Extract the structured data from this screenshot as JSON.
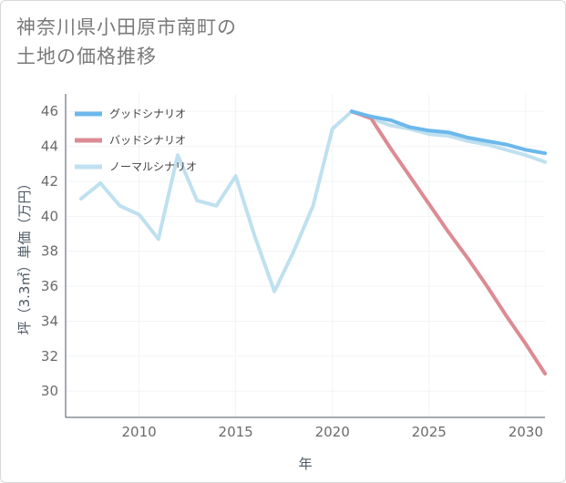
{
  "title": {
    "line1": "神奈川県小田原市南町の",
    "line2": "土地の価格推移"
  },
  "colors": {
    "good": "#6cb8ec",
    "bad": "#dc8b93",
    "normal": "#bfe0ef",
    "grid": "#ffffff",
    "plot_bg": "#ffffff"
  },
  "chart_data": {
    "type": "line",
    "title": "神奈川県小田原市南町の土地の価格推移",
    "xlabel": "年",
    "ylabel": "坪（3.3㎡）単価（万円）",
    "xlim": [
      2006.2,
      2031
    ],
    "ylim": [
      28.5,
      47
    ],
    "x_ticks": [
      2010,
      2015,
      2020,
      2025,
      2030
    ],
    "x_tick_labels": [
      "2010",
      "2015",
      "2020",
      "2025",
      "2030"
    ],
    "y_ticks": [
      30,
      32,
      34,
      36,
      38,
      40,
      42,
      44,
      46
    ],
    "y_tick_labels": [
      "30",
      "32",
      "34",
      "36",
      "38",
      "40",
      "42",
      "44",
      "46"
    ],
    "legend_position": "top-left",
    "series": [
      {
        "key": "good",
        "name": "グッドシナリオ",
        "x": [
          2021,
          2022,
          2023,
          2024,
          2025,
          2026,
          2027,
          2028,
          2029,
          2030,
          2031
        ],
        "y": [
          46.0,
          45.7,
          45.5,
          45.1,
          44.9,
          44.8,
          44.5,
          44.3,
          44.1,
          43.8,
          43.6
        ]
      },
      {
        "key": "bad",
        "name": "バッドシナリオ",
        "x": [
          2021,
          2022,
          2023,
          2024,
          2025,
          2026,
          2027,
          2028,
          2029,
          2030,
          2031
        ],
        "y": [
          46.0,
          45.6,
          43.9,
          42.3,
          40.7,
          39.1,
          37.6,
          36.0,
          34.3,
          32.7,
          31.0
        ]
      },
      {
        "key": "normal",
        "name": "ノーマルシナリオ",
        "x": [
          2007,
          2008,
          2009,
          2010,
          2011,
          2012,
          2013,
          2014,
          2015,
          2016,
          2017,
          2018,
          2019,
          2020,
          2021,
          2022,
          2023,
          2024,
          2025,
          2026,
          2027,
          2028,
          2029,
          2030,
          2031
        ],
        "y": [
          41.0,
          41.9,
          40.6,
          40.1,
          38.7,
          43.5,
          40.9,
          40.6,
          42.3,
          38.8,
          35.7,
          38.0,
          40.6,
          45.0,
          46.0,
          45.6,
          45.2,
          45.0,
          44.7,
          44.6,
          44.3,
          44.1,
          43.8,
          43.5,
          43.1
        ]
      }
    ]
  }
}
